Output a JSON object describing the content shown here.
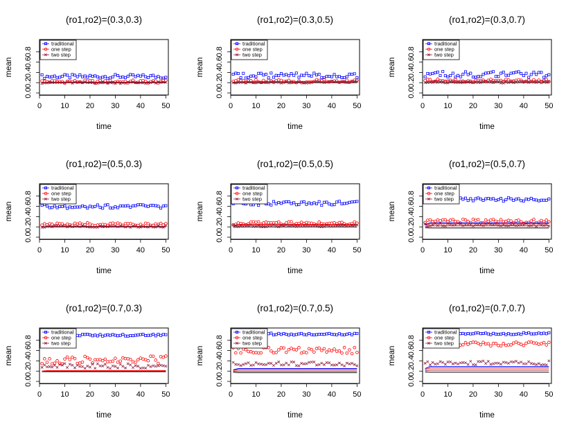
{
  "figure_colors": {
    "traditional": "#0000ff",
    "one_step": "#ff0000",
    "two_step": "#8b1a3a",
    "true_line": "#000000"
  },
  "chart_data": [
    {
      "type": "scatter",
      "title": "(ro1,ro2)=(0.3,0.3)",
      "xlabel": "time",
      "ylabel": "mean",
      "xlim": [
        0,
        51
      ],
      "ylim": [
        -0.04,
        1.04
      ],
      "xticks": [
        "0",
        "10",
        "20",
        "30",
        "40",
        "50"
      ],
      "yticks": [
        "0.0",
        "0.2",
        "0.4",
        "0.6",
        "0.8"
      ],
      "legend": {
        "position": "top-left",
        "entries": [
          "traditional",
          "one step",
          "two step"
        ]
      },
      "series": [
        {
          "name": "traditional",
          "marker": "square",
          "base": 0.32,
          "amp": 0.04
        },
        {
          "name": "one step",
          "marker": "circle",
          "base": 0.22,
          "amp": 0.03
        },
        {
          "name": "two step",
          "marker": "x",
          "base": 0.2,
          "amp": 0.02
        }
      ],
      "lines": [
        0.2,
        0.21
      ]
    },
    {
      "type": "scatter",
      "title": "(ro1,ro2)=(0.3,0.5)",
      "xlabel": "time",
      "ylabel": "mean",
      "xlim": [
        0,
        51
      ],
      "ylim": [
        -0.04,
        1.04
      ],
      "xticks": [
        "0",
        "10",
        "20",
        "30",
        "40",
        "50"
      ],
      "yticks": [
        "0.0",
        "0.2",
        "0.4",
        "0.6",
        "0.8"
      ],
      "legend": {
        "position": "top-left",
        "entries": [
          "traditional",
          "one step",
          "two step"
        ]
      },
      "series": [
        {
          "name": "traditional",
          "marker": "square",
          "base": 0.34,
          "amp": 0.05
        },
        {
          "name": "one step",
          "marker": "circle",
          "base": 0.23,
          "amp": 0.03
        },
        {
          "name": "two step",
          "marker": "x",
          "base": 0.21,
          "amp": 0.02
        }
      ],
      "lines": [
        0.2,
        0.22
      ]
    },
    {
      "type": "scatter",
      "title": "(ro1,ro2)=(0.3,0.7)",
      "xlabel": "time",
      "ylabel": "mean",
      "xlim": [
        0,
        51
      ],
      "ylim": [
        -0.04,
        1.04
      ],
      "xticks": [
        "0",
        "10",
        "20",
        "30",
        "40",
        "50"
      ],
      "yticks": [
        "0.0",
        "0.2",
        "0.4",
        "0.6",
        "0.8"
      ],
      "legend": {
        "position": "top-left",
        "entries": [
          "traditional",
          "one step",
          "two step"
        ]
      },
      "series": [
        {
          "name": "traditional",
          "marker": "square",
          "base": 0.36,
          "amp": 0.06
        },
        {
          "name": "one step",
          "marker": "circle",
          "base": 0.24,
          "amp": 0.03
        },
        {
          "name": "two step",
          "marker": "x",
          "base": 0.21,
          "amp": 0.02
        }
      ],
      "lines": [
        0.2,
        0.23
      ]
    },
    {
      "type": "scatter",
      "title": "(ro1,ro2)=(0.5,0.3)",
      "xlabel": "time",
      "ylabel": "mean",
      "xlim": [
        0,
        51
      ],
      "ylim": [
        -0.04,
        1.04
      ],
      "xticks": [
        "0",
        "10",
        "20",
        "30",
        "40",
        "50"
      ],
      "yticks": [
        "0.0",
        "0.2",
        "0.4",
        "0.6",
        "0.8"
      ],
      "legend": {
        "position": "top-left",
        "entries": [
          "traditional",
          "one step",
          "two step"
        ]
      },
      "series": [
        {
          "name": "traditional",
          "marker": "square",
          "base": 0.6,
          "amp": 0.04
        },
        {
          "name": "one step",
          "marker": "circle",
          "base": 0.25,
          "amp": 0.03
        },
        {
          "name": "two step",
          "marker": "x",
          "base": 0.21,
          "amp": 0.02
        }
      ],
      "lines": [
        0.2,
        0.21
      ]
    },
    {
      "type": "scatter",
      "title": "(ro1,ro2)=(0.5,0.5)",
      "xlabel": "time",
      "ylabel": "mean",
      "xlim": [
        0,
        51
      ],
      "ylim": [
        -0.04,
        1.04
      ],
      "xticks": [
        "0",
        "10",
        "20",
        "30",
        "40",
        "50"
      ],
      "yticks": [
        "0.0",
        "0.2",
        "0.4",
        "0.6",
        "0.8"
      ],
      "legend": {
        "position": "top-left",
        "entries": [
          "traditional",
          "one step",
          "two step"
        ]
      },
      "series": [
        {
          "name": "traditional",
          "marker": "square",
          "base": 0.66,
          "amp": 0.04
        },
        {
          "name": "one step",
          "marker": "circle",
          "base": 0.27,
          "amp": 0.03
        },
        {
          "name": "two step",
          "marker": "x",
          "base": 0.22,
          "amp": 0.02
        }
      ],
      "lines": [
        0.2,
        0.23,
        0.25
      ]
    },
    {
      "type": "scatter",
      "title": "(ro1,ro2)=(0.5,0.7)",
      "xlabel": "time",
      "ylabel": "mean",
      "xlim": [
        0,
        51
      ],
      "ylim": [
        -0.04,
        1.04
      ],
      "xticks": [
        "0",
        "10",
        "20",
        "30",
        "40",
        "50"
      ],
      "yticks": [
        "0.0",
        "0.2",
        "0.4",
        "0.6",
        "0.8"
      ],
      "legend": {
        "position": "top-left",
        "entries": [
          "traditional",
          "one step",
          "two step"
        ]
      },
      "series": [
        {
          "name": "traditional",
          "marker": "square",
          "base": 0.74,
          "amp": 0.04
        },
        {
          "name": "one step",
          "marker": "circle",
          "base": 0.31,
          "amp": 0.04
        },
        {
          "name": "two step",
          "marker": "x",
          "base": 0.24,
          "amp": 0.03
        }
      ],
      "lines": [
        0.18,
        0.22,
        0.26,
        0.28
      ]
    },
    {
      "type": "scatter",
      "title": "(ro1,ro2)=(0.7,0.3)",
      "xlabel": "time",
      "ylabel": "mean",
      "xlim": [
        0,
        51
      ],
      "ylim": [
        -0.04,
        1.04
      ],
      "xticks": [
        "0",
        "10",
        "20",
        "30",
        "40",
        "50"
      ],
      "yticks": [
        "0.0",
        "0.2",
        "0.4",
        "0.6",
        "0.8"
      ],
      "legend": {
        "position": "top-left",
        "entries": [
          "traditional",
          "one step",
          "two step"
        ]
      },
      "series": [
        {
          "name": "traditional",
          "marker": "square",
          "base": 0.9,
          "amp": 0.02
        },
        {
          "name": "one step",
          "marker": "circle",
          "base": 0.42,
          "amp": 0.08
        },
        {
          "name": "two step",
          "marker": "x",
          "base": 0.3,
          "amp": 0.05
        }
      ],
      "lines": [
        0.19,
        0.2,
        0.21
      ]
    },
    {
      "type": "scatter",
      "title": "(ro1,ro2)=(0.7,0.5)",
      "xlabel": "time",
      "ylabel": "mean",
      "xlim": [
        0,
        51
      ],
      "ylim": [
        -0.04,
        1.04
      ],
      "xticks": [
        "0",
        "10",
        "20",
        "30",
        "40",
        "50"
      ],
      "yticks": [
        "0.0",
        "0.2",
        "0.4",
        "0.6",
        "0.8"
      ],
      "legend": {
        "position": "top-left",
        "entries": [
          "traditional",
          "one step",
          "two step"
        ]
      },
      "series": [
        {
          "name": "traditional",
          "marker": "square",
          "base": 0.92,
          "amp": 0.02
        },
        {
          "name": "one step",
          "marker": "circle",
          "base": 0.6,
          "amp": 0.06
        },
        {
          "name": "two step",
          "marker": "x",
          "base": 0.34,
          "amp": 0.04
        }
      ],
      "lines": [
        0.17,
        0.2,
        0.23,
        0.25
      ]
    },
    {
      "type": "scatter",
      "title": "(ro1,ro2)=(0.7,0.7)",
      "xlabel": "time",
      "ylabel": "mean",
      "xlim": [
        0,
        51
      ],
      "ylim": [
        -0.04,
        1.04
      ],
      "xticks": [
        "0",
        "10",
        "20",
        "30",
        "40",
        "50"
      ],
      "yticks": [
        "0.0",
        "0.2",
        "0.4",
        "0.6",
        "0.8"
      ],
      "legend": {
        "position": "top-left",
        "entries": [
          "traditional",
          "one step",
          "two step"
        ]
      },
      "series": [
        {
          "name": "traditional",
          "marker": "square",
          "base": 0.93,
          "amp": 0.02
        },
        {
          "name": "one step",
          "marker": "circle",
          "base": 0.73,
          "amp": 0.04
        },
        {
          "name": "two step",
          "marker": "x",
          "base": 0.36,
          "amp": 0.04
        }
      ],
      "lines": [
        0.18,
        0.22,
        0.26,
        0.29
      ]
    }
  ]
}
